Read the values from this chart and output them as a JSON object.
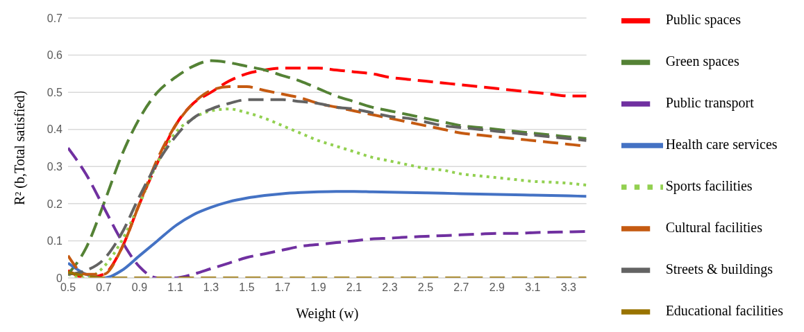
{
  "chart_data": {
    "type": "line",
    "xlabel": "Weight (w)",
    "ylabel": "R² (b,Total satisfied)",
    "x": [
      0.5,
      0.6,
      0.7,
      0.8,
      0.9,
      1.0,
      1.1,
      1.2,
      1.3,
      1.4,
      1.5,
      1.6,
      1.7,
      1.8,
      1.9,
      2.0,
      2.1,
      2.2,
      2.3,
      2.4,
      2.5,
      2.6,
      2.7,
      2.8,
      2.9,
      3.0,
      3.1,
      3.2,
      3.3,
      3.4
    ],
    "xlim": [
      0.5,
      3.4
    ],
    "xticks": [
      0.5,
      0.7,
      0.9,
      1.1,
      1.3,
      1.5,
      1.7,
      1.9,
      2.1,
      2.3,
      2.5,
      2.7,
      2.9,
      3.1,
      3.3
    ],
    "ylim": [
      0,
      0.7
    ],
    "yticks": [
      0,
      0.1,
      0.2,
      0.3,
      0.4,
      0.5,
      0.6,
      0.7
    ],
    "grid": "y",
    "legend": "right",
    "marker": "none",
    "series": [
      {
        "name": "Public spaces",
        "color": "#ff0000",
        "line_style": "dashed",
        "values": [
          0.02,
          0.0,
          0.01,
          0.08,
          0.2,
          0.31,
          0.41,
          0.47,
          0.5,
          0.53,
          0.55,
          0.56,
          0.565,
          0.565,
          0.565,
          0.56,
          0.555,
          0.55,
          0.54,
          0.535,
          0.53,
          0.525,
          0.52,
          0.515,
          0.51,
          0.505,
          0.5,
          0.495,
          0.49,
          0.49
        ]
      },
      {
        "name": "Green spaces",
        "color": "#548235",
        "line_style": "dashed",
        "values": [
          0.01,
          0.08,
          0.2,
          0.33,
          0.43,
          0.5,
          0.54,
          0.57,
          0.585,
          0.58,
          0.57,
          0.56,
          0.545,
          0.53,
          0.51,
          0.49,
          0.475,
          0.46,
          0.45,
          0.44,
          0.43,
          0.42,
          0.41,
          0.405,
          0.4,
          0.395,
          0.39,
          0.385,
          0.38,
          0.375
        ]
      },
      {
        "name": "Public transport",
        "color": "#7030a0",
        "line_style": "dashed",
        "values": [
          0.35,
          0.28,
          0.19,
          0.1,
          0.03,
          0.0,
          0.0,
          0.01,
          0.025,
          0.04,
          0.055,
          0.065,
          0.075,
          0.085,
          0.09,
          0.095,
          0.1,
          0.105,
          0.107,
          0.11,
          0.112,
          0.114,
          0.116,
          0.118,
          0.12,
          0.12,
          0.122,
          0.123,
          0.124,
          0.125
        ]
      },
      {
        "name": "Health care services",
        "color": "#4472c4",
        "line_style": "solid",
        "values": [
          0.04,
          0.01,
          0.0,
          0.02,
          0.06,
          0.1,
          0.14,
          0.17,
          0.19,
          0.205,
          0.215,
          0.222,
          0.227,
          0.23,
          0.232,
          0.233,
          0.233,
          0.232,
          0.231,
          0.23,
          0.229,
          0.228,
          0.227,
          0.226,
          0.225,
          0.224,
          0.223,
          0.222,
          0.221,
          0.22
        ]
      },
      {
        "name": "Sports facilities",
        "color": "#92d050",
        "line_style": "dotted",
        "values": [
          0.01,
          0.0,
          0.03,
          0.1,
          0.2,
          0.31,
          0.39,
          0.43,
          0.45,
          0.455,
          0.445,
          0.43,
          0.41,
          0.39,
          0.37,
          0.355,
          0.34,
          0.325,
          0.315,
          0.305,
          0.295,
          0.29,
          0.28,
          0.275,
          0.27,
          0.265,
          0.26,
          0.258,
          0.255,
          0.25
        ]
      },
      {
        "name": "Cultural facilities",
        "color": "#c55a11",
        "line_style": "dashed",
        "values": [
          0.06,
          0.01,
          0.01,
          0.08,
          0.2,
          0.32,
          0.41,
          0.47,
          0.505,
          0.515,
          0.515,
          0.505,
          0.495,
          0.485,
          0.47,
          0.46,
          0.45,
          0.44,
          0.43,
          0.42,
          0.41,
          0.4,
          0.39,
          0.385,
          0.38,
          0.375,
          0.37,
          0.365,
          0.36,
          0.355
        ]
      },
      {
        "name": "Streets & buildings",
        "color": "#636363",
        "line_style": "dashed",
        "values": [
          0.01,
          0.02,
          0.05,
          0.12,
          0.22,
          0.31,
          0.38,
          0.43,
          0.455,
          0.47,
          0.48,
          0.48,
          0.48,
          0.475,
          0.47,
          0.46,
          0.455,
          0.445,
          0.435,
          0.43,
          0.42,
          0.41,
          0.405,
          0.4,
          0.395,
          0.39,
          0.385,
          0.38,
          0.375,
          0.37
        ]
      },
      {
        "name": "Educational facilities",
        "color": "#997300",
        "line_style": "dashed",
        "values": [
          0.015,
          0.005,
          0,
          0,
          0,
          0,
          0,
          0,
          0,
          0,
          0,
          0,
          0,
          0,
          0,
          0,
          0,
          0,
          0,
          0,
          0,
          0,
          0,
          0,
          0,
          0,
          0,
          0,
          0,
          0
        ]
      }
    ]
  }
}
